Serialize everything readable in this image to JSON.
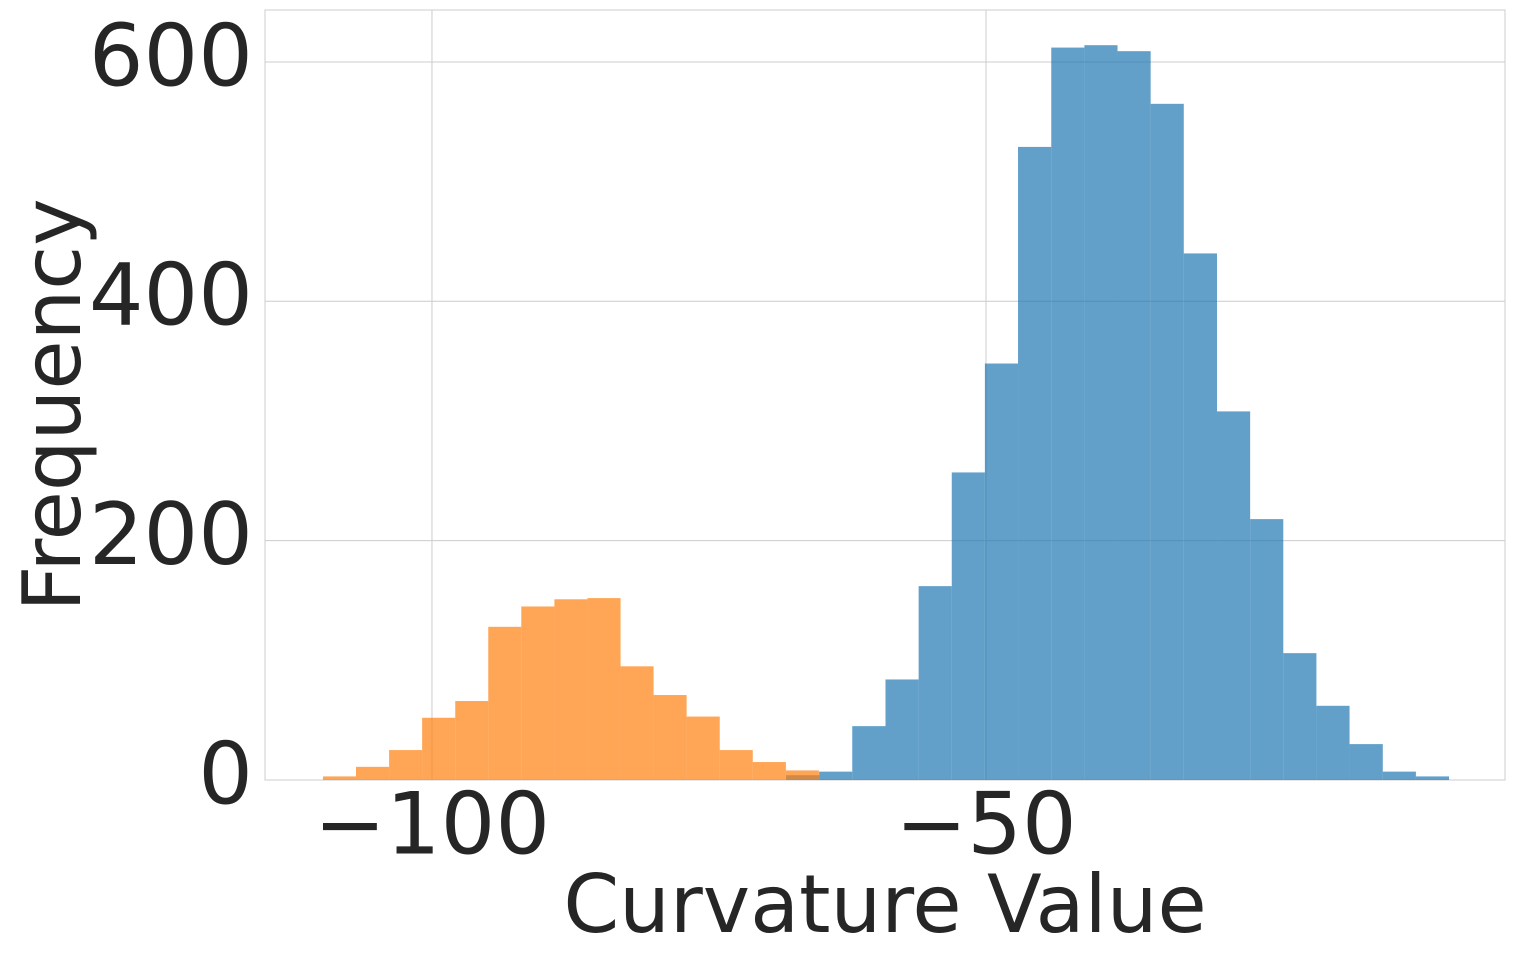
{
  "chart_data": {
    "type": "histogram",
    "xlabel": "Curvature Value",
    "ylabel": "Frequency",
    "xlim": [
      -115.07,
      -3.16
    ],
    "ylim": [
      0,
      643.4
    ],
    "xticks": [
      {
        "value": -100,
        "label": "−100"
      },
      {
        "value": -50,
        "label": "−50"
      }
    ],
    "yticks": [
      0,
      200,
      400,
      600
    ],
    "grid": true,
    "series": [
      {
        "color": "#1f77b4",
        "bins": [
          -68.05,
          -65.06,
          -62.07,
          -59.07,
          -56.08,
          -53.09,
          -50.1,
          -47.11,
          -44.11,
          -41.12,
          -38.13,
          -35.14,
          -32.15,
          -29.15,
          -26.16,
          -23.17,
          -20.18,
          -17.19,
          -14.19,
          -11.2,
          -8.21
        ],
        "values": [
          4,
          7,
          45,
          84,
          162,
          257,
          348,
          529,
          612,
          614,
          609,
          565,
          440,
          308,
          218,
          106,
          62,
          30,
          7,
          3
        ]
      },
      {
        "color": "#ff7f0e",
        "bins": [
          -109.84,
          -106.86,
          -103.87,
          -100.89,
          -97.9,
          -94.92,
          -91.94,
          -88.95,
          -85.97,
          -82.98,
          -80.0,
          -77.02,
          -74.03,
          -71.05,
          -68.06,
          -65.08
        ],
        "values": [
          3,
          11,
          25,
          52,
          66,
          128,
          145,
          151,
          152,
          95,
          71,
          53,
          25,
          15,
          8
        ]
      }
    ]
  }
}
